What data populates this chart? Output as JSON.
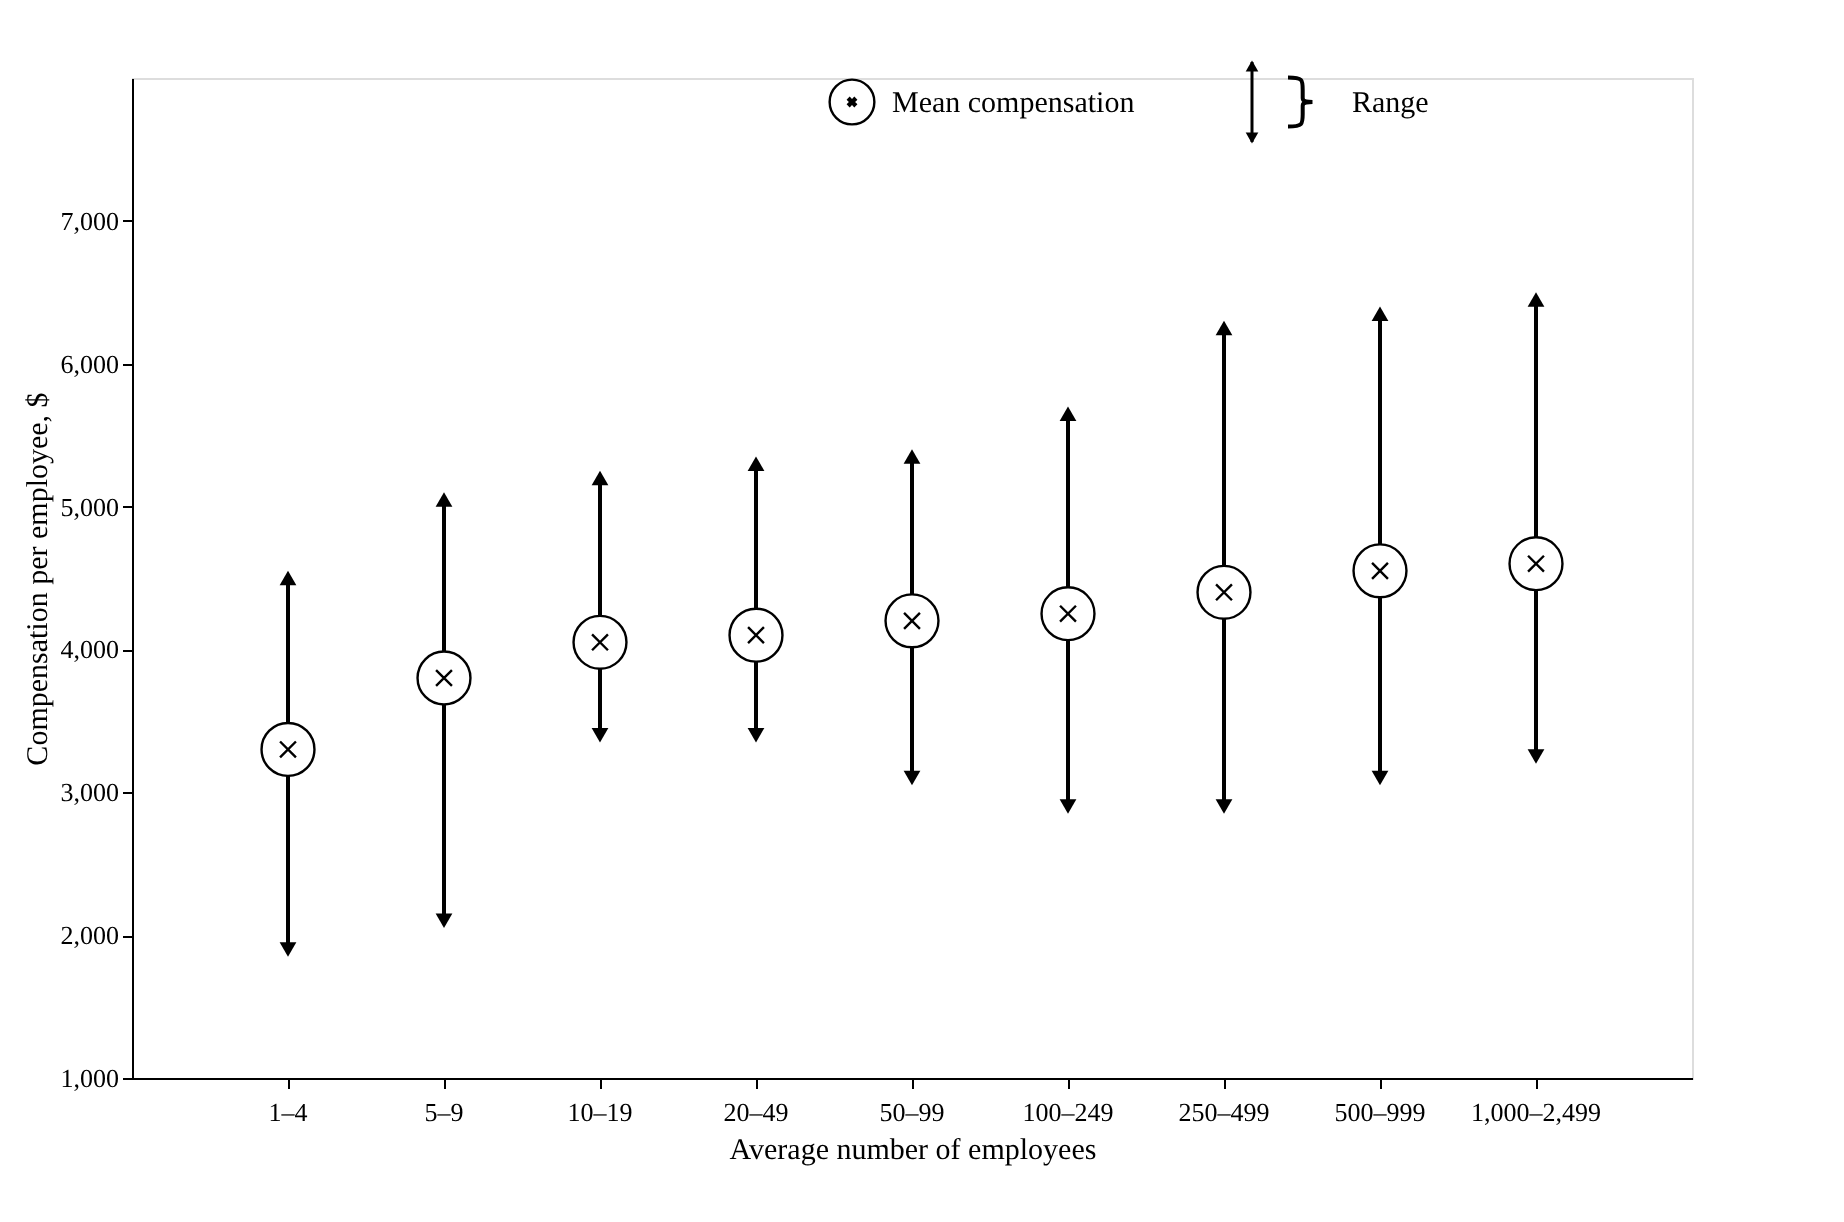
{
  "chart_data": {
    "type": "scatter",
    "xlabel": "Average number of employees",
    "ylabel": "Compensation per employee, $",
    "categories": [
      "1–4",
      "5–9",
      "10–19",
      "20–49",
      "50–99",
      "100–249",
      "250–499",
      "500–999",
      "1,000–2,499"
    ],
    "series": [
      {
        "name": "Mean compensation",
        "color": "#000000",
        "values": [
          3300,
          3800,
          4050,
          4100,
          4200,
          4250,
          4400,
          4550,
          4600
        ],
        "errors": [
          [
            1900,
            4500
          ],
          [
            2100,
            5050
          ],
          [
            3400,
            5200
          ],
          [
            3400,
            5300
          ],
          [
            3100,
            5350
          ],
          [
            2900,
            5650
          ],
          [
            2900,
            6250
          ],
          [
            3100,
            6350
          ],
          [
            3250,
            6450
          ]
        ]
      }
    ],
    "annotations": [
      "Range"
    ],
    "marker": "circle",
    "legend": "top right",
    "grid": false,
    "ylim": [
      1000,
      8000
    ],
    "yticks": [
      {
        "value": 1000,
        "label": "1,000"
      },
      {
        "value": 2000,
        "label": "2,000"
      },
      {
        "value": 3000,
        "label": "3,000"
      },
      {
        "value": 4000,
        "label": "4,000"
      },
      {
        "value": 5000,
        "label": "5,000"
      },
      {
        "value": 6000,
        "label": "6,000"
      },
      {
        "value": 7000,
        "label": "7,000"
      }
    ]
  }
}
